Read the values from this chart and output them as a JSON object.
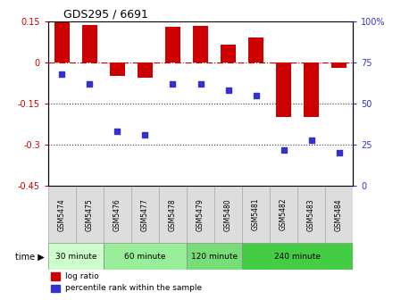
{
  "title": "GDS295 / 6691",
  "samples": [
    "GSM5474",
    "GSM5475",
    "GSM5476",
    "GSM5477",
    "GSM5478",
    "GSM5479",
    "GSM5480",
    "GSM5481",
    "GSM5482",
    "GSM5483",
    "GSM5484"
  ],
  "log_ratio": [
    0.15,
    0.135,
    -0.05,
    -0.055,
    0.128,
    0.133,
    0.065,
    0.09,
    -0.2,
    -0.2,
    -0.02
  ],
  "percentile": [
    68,
    62,
    33,
    31,
    62,
    62,
    58,
    55,
    22,
    28,
    20
  ],
  "bar_color": "#cc0000",
  "dot_color": "#3333cc",
  "ylim_left": [
    -0.45,
    0.15
  ],
  "ylim_right": [
    0,
    100
  ],
  "yticks_left": [
    0.15,
    0.0,
    -0.15,
    -0.3,
    -0.45
  ],
  "ytick_labels_left": [
    "0.15",
    "0",
    "-0.15",
    "-0.3",
    "-0.45"
  ],
  "yticks_right": [
    100,
    75,
    50,
    25,
    0
  ],
  "ytick_labels_right": [
    "100%",
    "75",
    "50",
    "25",
    "0"
  ],
  "time_groups": [
    {
      "label": "30 minute",
      "start": 0,
      "end": 2,
      "color": "#ccffcc"
    },
    {
      "label": "60 minute",
      "start": 2,
      "end": 5,
      "color": "#99ee99"
    },
    {
      "label": "120 minute",
      "start": 5,
      "end": 7,
      "color": "#77dd77"
    },
    {
      "label": "240 minute",
      "start": 7,
      "end": 11,
      "color": "#44cc44"
    }
  ],
  "time_label": "time",
  "legend_bar_label": "log ratio",
  "legend_dot_label": "percentile rank within the sample",
  "zero_line_color": "#cc0000",
  "dotted_line_color": "#333333",
  "background_color": "#ffffff",
  "sample_box_color": "#dddddd",
  "sample_box_edge": "#aaaaaa"
}
